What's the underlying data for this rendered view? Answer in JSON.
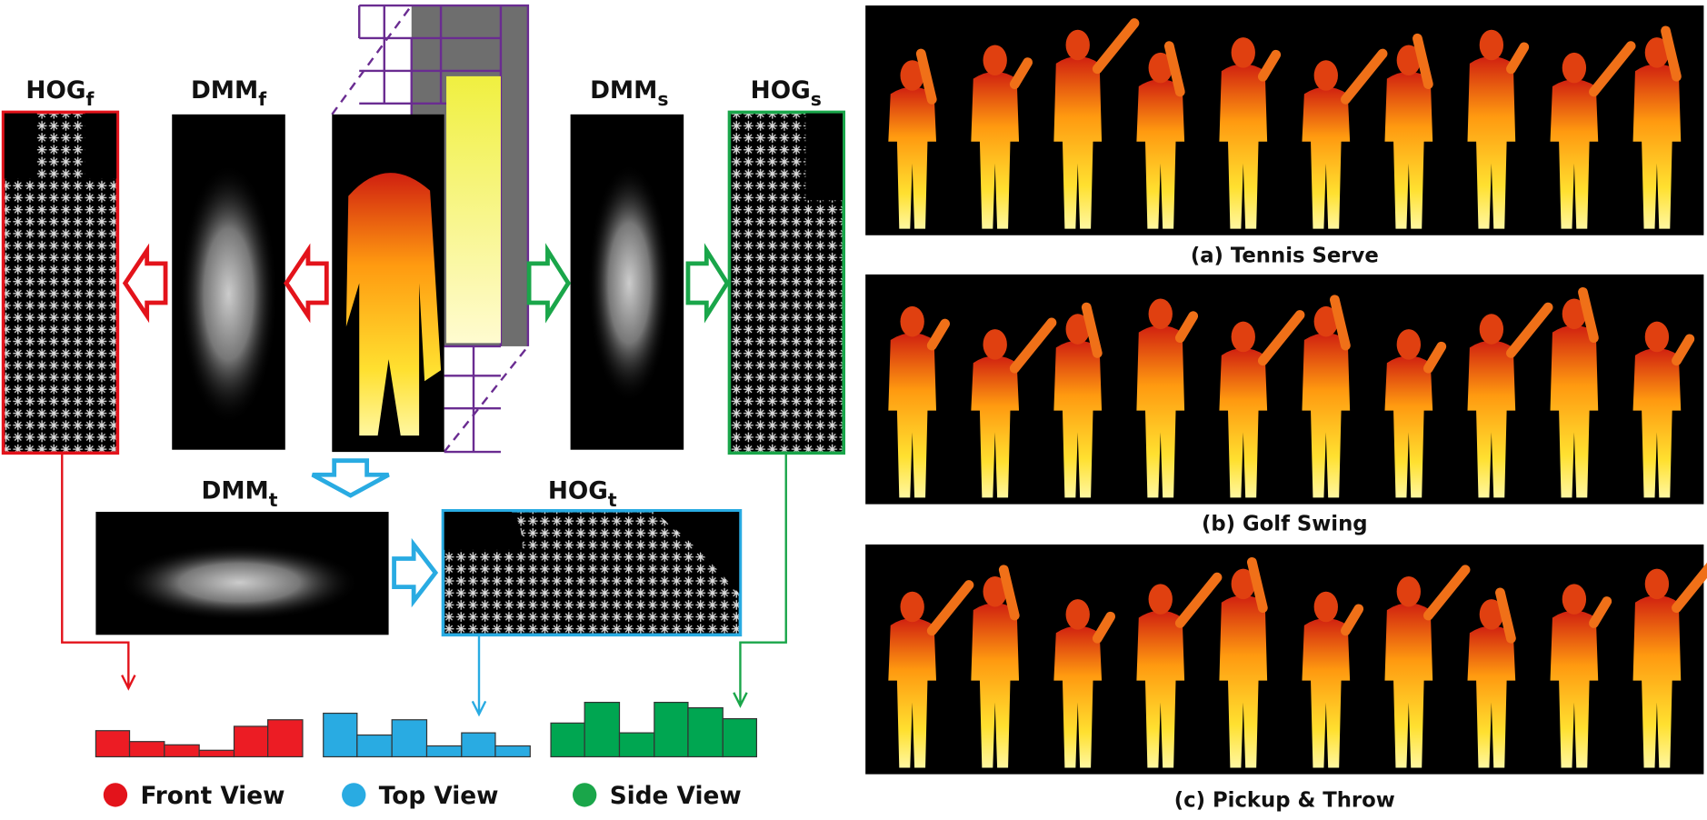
{
  "labels": {
    "hog_f": {
      "main": "HOG",
      "sub": "f"
    },
    "dmm_f": {
      "main": "DMM",
      "sub": "f"
    },
    "dmm_s": {
      "main": "DMM",
      "sub": "s"
    },
    "hog_s": {
      "main": "HOG",
      "sub": "s"
    },
    "dmm_t": {
      "main": "DMM",
      "sub": "t"
    },
    "hog_t": {
      "main": "HOG",
      "sub": "t"
    }
  },
  "legend": [
    "Front View",
    "Top View",
    "Side View"
  ],
  "panels": [
    "(a) Tennis Serve",
    "(b) Golf Swing",
    "(c) Pickup & Throw"
  ]
}
